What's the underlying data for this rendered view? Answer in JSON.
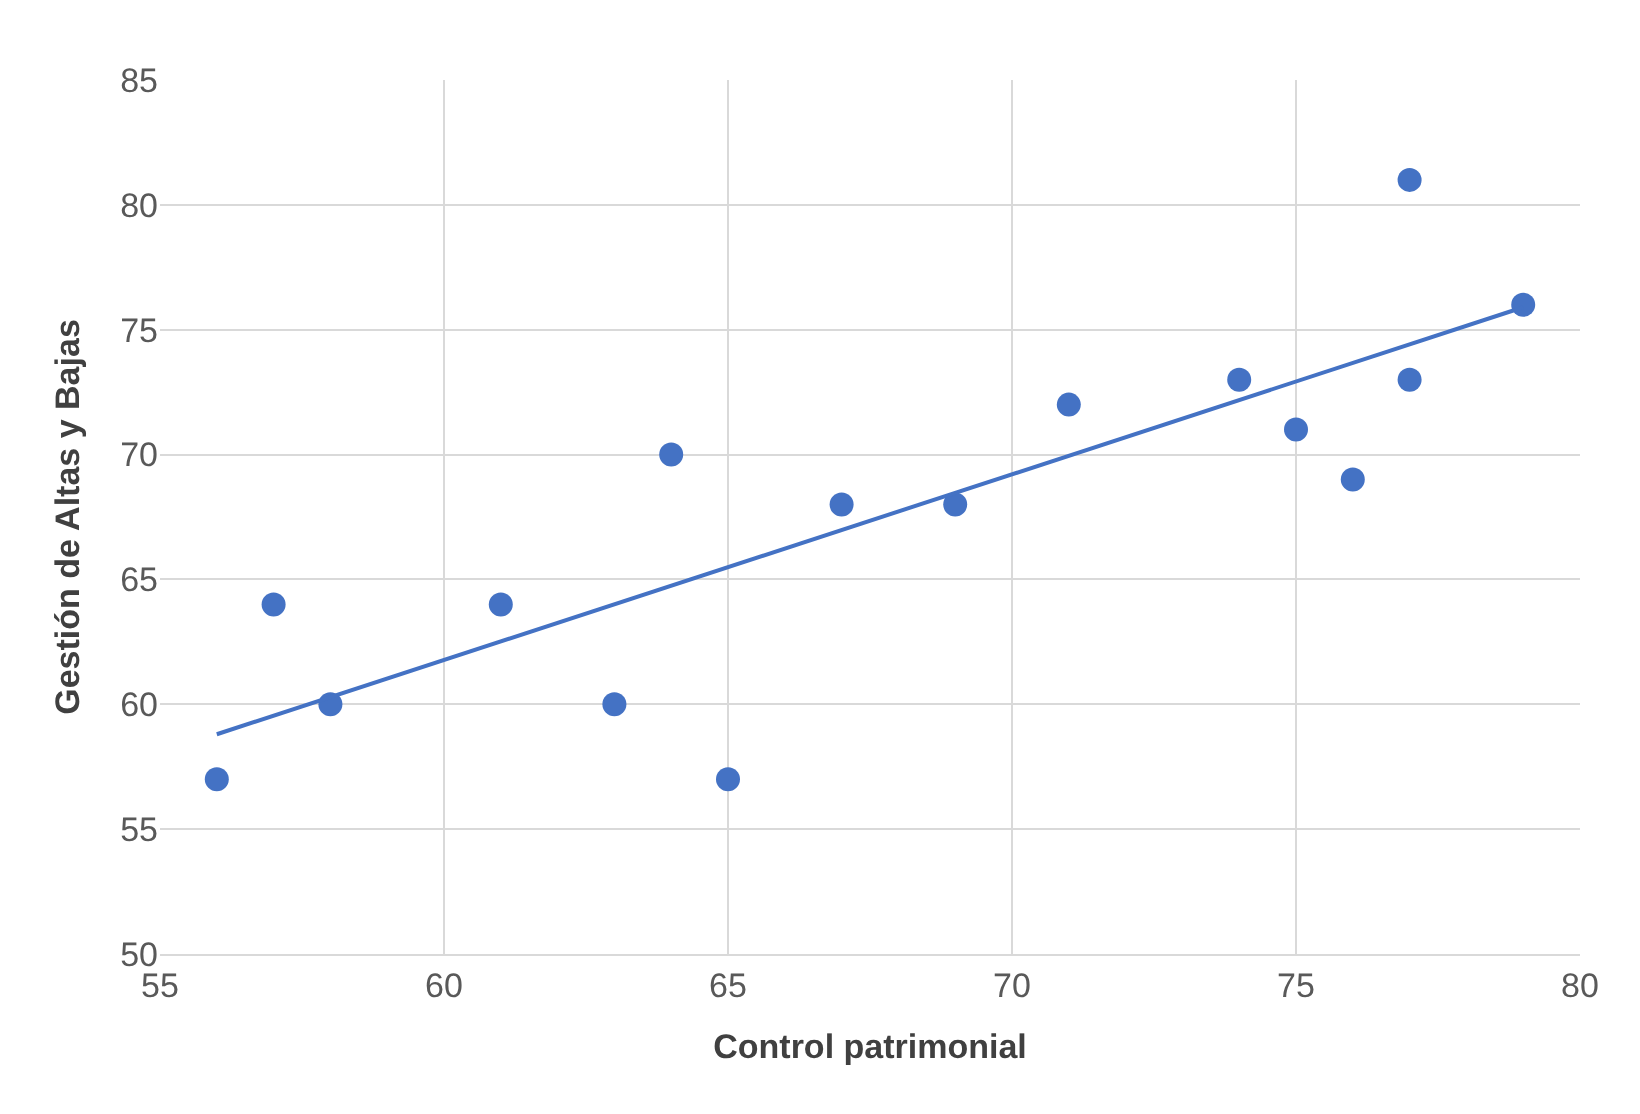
{
  "chart_data": {
    "type": "scatter",
    "xlabel": "Control patrimonial",
    "ylabel": "Gestión de Altas y Bajas",
    "xlim": [
      55,
      80
    ],
    "xticks": [
      55,
      60,
      65,
      70,
      75,
      80
    ],
    "ylim": [
      50,
      85
    ],
    "yticks": [
      50,
      55,
      60,
      65,
      70,
      75,
      80,
      85
    ],
    "grid": true,
    "marker": "circle",
    "series": [
      {
        "color": "#4472c4",
        "x": [
          56,
          57,
          58,
          61,
          63,
          64,
          65,
          67,
          69,
          71,
          74,
          75,
          76,
          77,
          77,
          79
        ],
        "values": [
          57,
          64,
          60,
          64,
          60,
          70,
          57,
          68,
          68,
          72,
          73,
          71,
          69,
          81,
          73,
          76
        ]
      },
      {
        "type": "line",
        "color": "#4472c4",
        "marker": "none",
        "line_style": "solid",
        "x": [
          56,
          79
        ],
        "values": [
          58.8,
          75.9
        ]
      }
    ]
  }
}
